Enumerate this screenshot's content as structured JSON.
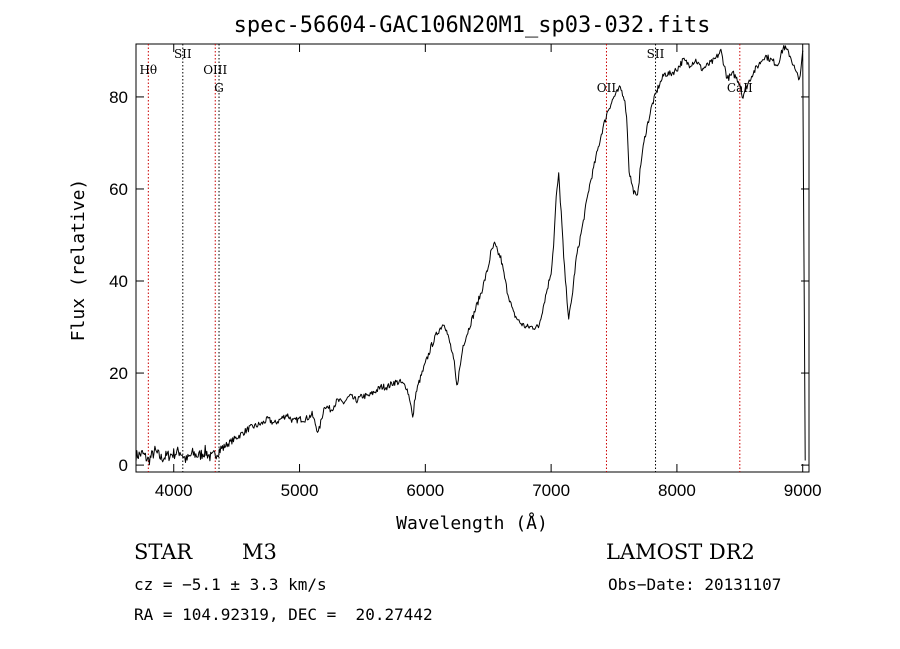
{
  "chart_data": {
    "type": "line",
    "title": "spec-56604-GAC106N20M1_sp03-032.fits",
    "xlabel": "Wavelength (Å)",
    "ylabel": "Flux (relative)",
    "xlim": [
      3700,
      9050
    ],
    "ylim": [
      -1.5,
      91.5
    ],
    "xticks": [
      4000,
      5000,
      6000,
      7000,
      8000,
      9000
    ],
    "yticks": [
      0,
      20,
      40,
      60,
      80
    ],
    "grid": false,
    "series": [
      {
        "color": "#000000",
        "x": [
          3700,
          3750,
          3800,
          3850,
          3900,
          3950,
          4000,
          4050,
          4100,
          4150,
          4200,
          4250,
          4300,
          4350,
          4400,
          4450,
          4500,
          4550,
          4600,
          4650,
          4700,
          4750,
          4800,
          4850,
          4900,
          4950,
          5000,
          5050,
          5100,
          5150,
          5200,
          5250,
          5300,
          5350,
          5400,
          5450,
          5500,
          5550,
          5600,
          5650,
          5700,
          5750,
          5800,
          5850,
          5880,
          5900,
          5920,
          5950,
          6000,
          6050,
          6100,
          6150,
          6200,
          6230,
          6250,
          6280,
          6300,
          6350,
          6400,
          6450,
          6500,
          6520,
          6550,
          6580,
          6600,
          6650,
          6700,
          6750,
          6800,
          6850,
          6900,
          6950,
          7000,
          7020,
          7040,
          7060,
          7080,
          7100,
          7120,
          7140,
          7160,
          7200,
          7250,
          7300,
          7350,
          7400,
          7450,
          7500,
          7550,
          7580,
          7600,
          7620,
          7650,
          7680,
          7700,
          7720,
          7750,
          7800,
          7850,
          7900,
          7950,
          8000,
          8050,
          8100,
          8150,
          8200,
          8250,
          8300,
          8350,
          8400,
          8450,
          8500,
          8520,
          8550,
          8600,
          8650,
          8700,
          8750,
          8800,
          8850,
          8900,
          8950,
          8980,
          9000,
          9020
        ],
        "y": [
          2,
          2.5,
          1,
          3,
          1.5,
          2,
          2.5,
          3,
          1,
          2.5,
          2,
          3,
          1.5,
          3,
          4,
          5,
          6,
          7,
          8,
          8.5,
          9,
          10,
          9,
          10,
          11,
          9.5,
          10,
          10,
          11,
          7,
          13,
          12,
          14,
          13.5,
          15,
          14,
          15,
          15,
          16,
          17,
          17,
          18,
          18,
          17,
          14,
          10,
          15,
          18,
          22,
          26,
          29,
          31,
          26,
          22,
          17,
          22,
          26,
          30,
          34,
          38,
          43,
          46,
          48,
          46,
          45,
          38,
          33,
          31,
          30,
          30,
          30,
          36,
          42,
          48,
          58,
          63,
          55,
          45,
          38,
          32,
          35,
          45,
          52,
          60,
          66,
          72,
          77,
          80,
          82,
          80,
          76,
          64,
          60,
          58,
          62,
          67,
          72,
          78,
          82,
          85,
          85,
          86,
          88,
          87,
          88,
          86,
          87,
          88,
          90,
          84,
          85,
          83,
          80,
          82,
          85,
          87,
          89,
          88,
          87,
          91,
          89,
          85,
          84,
          90,
          1
        ]
      }
    ],
    "markers": [
      {
        "label": "Hθ",
        "x": 3798,
        "color": "#cc0000",
        "style": "dotted"
      },
      {
        "label": "SII",
        "x": 4072,
        "color": "#000000",
        "style": "dotted"
      },
      {
        "label": "OIII",
        "x": 4330,
        "color": "#cc0000",
        "style": "dotted"
      },
      {
        "label": "G",
        "x": 4360,
        "color": "#000000",
        "style": "dotted"
      },
      {
        "label": "OII",
        "x": 7440,
        "color": "#cc0000",
        "style": "dotted"
      },
      {
        "label": "SII",
        "x": 7830,
        "color": "#000000",
        "style": "dotted"
      },
      {
        "label": "CaII",
        "x": 8500,
        "color": "#cc0000",
        "style": "dotted"
      }
    ]
  },
  "info": {
    "class": "STAR",
    "subclass": "M3",
    "survey": "LAMOST DR2",
    "cz": "cz = −5.1 ± 3.3 km/s",
    "obs_date": "Obs−Date: 20131107",
    "coords": "RA = 104.92319, DEC =  20.27442"
  }
}
